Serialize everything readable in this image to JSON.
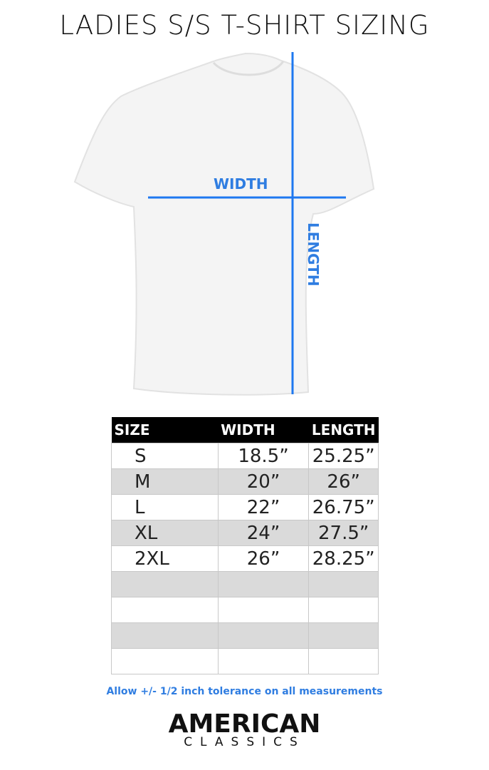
{
  "title": "LADIES S/S T-SHIRT SIZING",
  "diagram": {
    "width_label": "WIDTH",
    "length_label": "LENGTH",
    "line_color": "#1e78f0"
  },
  "table": {
    "headers": [
      "SIZE",
      "WIDTH",
      "LENGTH"
    ],
    "rows": [
      [
        "S",
        "18.5”",
        "25.25”"
      ],
      [
        "M",
        "20”",
        "26”"
      ],
      [
        "L",
        "22”",
        "26.75”"
      ],
      [
        "XL",
        "24”",
        "27.5”"
      ],
      [
        "2XL",
        "26”",
        "28.25”"
      ],
      [
        "",
        "",
        ""
      ],
      [
        "",
        "",
        ""
      ],
      [
        "",
        "",
        ""
      ],
      [
        "",
        "",
        ""
      ]
    ]
  },
  "note": "Allow +/- 1/2 inch tolerance on all measurements",
  "logo": {
    "line1": "AMERICAN",
    "line2": "CLASSICS"
  }
}
